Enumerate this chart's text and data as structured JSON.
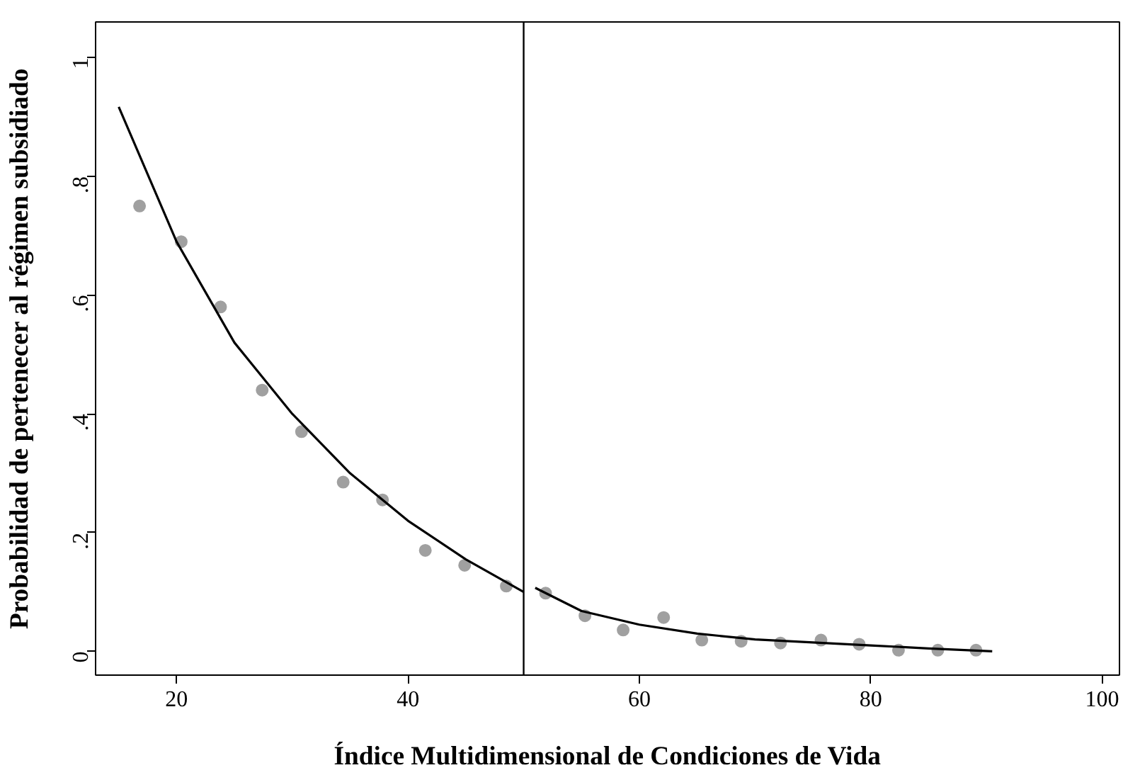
{
  "chart_data": {
    "type": "scatter",
    "xlabel": "Índice Multidimensional de Condiciones de Vida",
    "ylabel": "Probabilidad de pertenecer al régimen subsidiado",
    "xlim": [
      13,
      101.5
    ],
    "ylim": [
      -0.04,
      1.06
    ],
    "xticks": [
      20,
      40,
      60,
      80,
      100
    ],
    "yticks": [
      0,
      {
        "value": 0.2,
        "label": ".2"
      },
      {
        "value": 0.4,
        "label": ".4"
      },
      {
        "value": 0.6,
        "label": ".6"
      },
      {
        "value": 0.8,
        "label": ".8"
      },
      1
    ],
    "grid": false,
    "marker": "circle",
    "ref_lines": [
      {
        "axis": "x",
        "value": 50,
        "color": "#000000",
        "line_style": "solid"
      }
    ],
    "series": [
      {
        "color": "#a0a0a0",
        "x": [
          16.8,
          20.4,
          23.8,
          27.4,
          30.8,
          34.4,
          37.8,
          41.5,
          44.9,
          48.5,
          51.9,
          55.3,
          58.6,
          62.1,
          65.4,
          68.8,
          72.2,
          75.7,
          79.0,
          82.4,
          85.8,
          89.1
        ],
        "values": [
          0.75,
          0.69,
          0.58,
          0.44,
          0.37,
          0.285,
          0.255,
          0.17,
          0.145,
          0.11,
          0.098,
          0.06,
          0.036,
          0.057,
          0.019,
          0.017,
          0.014,
          0.019,
          0.012,
          0.002,
          0.002,
          0.002
        ]
      },
      {
        "type": "line",
        "color": "#000000",
        "line_style": "solid",
        "marker": "none",
        "x": [
          15,
          20,
          25,
          30,
          35,
          40,
          45,
          50
        ],
        "values": [
          0.917,
          0.69,
          0.52,
          0.4,
          0.3,
          0.22,
          0.155,
          0.1
        ]
      },
      {
        "type": "line",
        "color": "#000000",
        "line_style": "solid",
        "marker": "none",
        "x": [
          51,
          55,
          60,
          65,
          70,
          75,
          80,
          85,
          90.5
        ],
        "values": [
          0.107,
          0.068,
          0.045,
          0.03,
          0.02,
          0.015,
          0.01,
          0.005,
          0.0
        ]
      }
    ]
  }
}
